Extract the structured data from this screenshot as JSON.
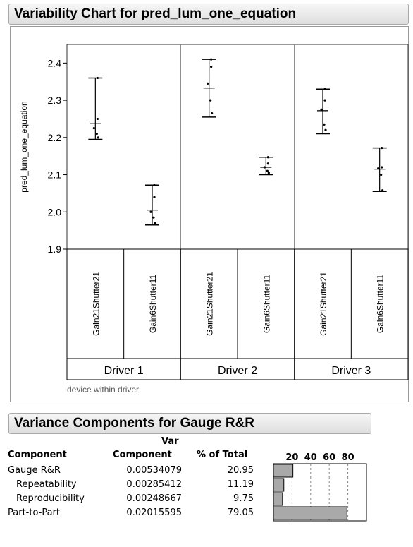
{
  "header_chart": "Variability Chart for pred_lum_one_equation",
  "header_variance": "Variance Components for Gauge R&R",
  "chart_data": {
    "type": "variability",
    "ylabel": "pred_lum_one_equation",
    "ylim": [
      1.9,
      2.45
    ],
    "yticks": [
      "2.4",
      "2.3",
      "2.2",
      "2.1",
      "2.0",
      "1.9"
    ],
    "groups": [
      "Driver 1",
      "Driver 2",
      "Driver 3"
    ],
    "devices": [
      "Gain21Shutter21",
      "Gain6Shutter11"
    ],
    "footer_label": "device within driver",
    "cells": [
      {
        "group": "Driver 1",
        "device": "Gain21Shutter21",
        "min": 2.195,
        "max": 2.36,
        "mean": 2.237,
        "points": [
          2.36,
          2.25,
          2.225,
          2.21,
          2.2
        ]
      },
      {
        "group": "Driver 1",
        "device": "Gain6Shutter11",
        "min": 1.965,
        "max": 2.072,
        "mean": 2.005,
        "points": [
          2.072,
          2.04,
          2.0,
          1.985,
          1.97
        ]
      },
      {
        "group": "Driver 2",
        "device": "Gain21Shutter21",
        "min": 2.255,
        "max": 2.41,
        "mean": 2.333,
        "points": [
          2.41,
          2.39,
          2.345,
          2.3,
          2.265
        ]
      },
      {
        "group": "Driver 2",
        "device": "Gain6Shutter11",
        "min": 2.1,
        "max": 2.147,
        "mean": 2.12,
        "points": [
          2.147,
          2.13,
          2.12,
          2.11,
          2.105
        ]
      },
      {
        "group": "Driver 3",
        "device": "Gain21Shutter21",
        "min": 2.21,
        "max": 2.33,
        "mean": 2.272,
        "points": [
          2.33,
          2.3,
          2.275,
          2.235,
          2.22
        ]
      },
      {
        "group": "Driver 3",
        "device": "Gain6Shutter11",
        "min": 2.055,
        "max": 2.172,
        "mean": 2.115,
        "points": [
          2.172,
          2.12,
          2.117,
          2.1,
          2.058
        ]
      }
    ],
    "variance_table": {
      "columns": [
        "Component",
        "Var Component",
        "% of Total"
      ],
      "header_top": "Var",
      "header_bottom": [
        "Component",
        "Component",
        "% of Total"
      ],
      "rows": [
        {
          "component": "Gauge R&R",
          "var": "0.00534079",
          "pct": "20.95",
          "pct_value": 20.95
        },
        {
          "component": "Repeatability",
          "var": "0.00285412",
          "pct": "11.19",
          "pct_value": 11.19
        },
        {
          "component": "Reproducibility",
          "var": "0.00248667",
          "pct": "9.75",
          "pct_value": 9.75
        },
        {
          "component": "Part-to-Part",
          "var": "0.02015595",
          "pct": "79.05",
          "pct_value": 79.05
        }
      ],
      "bar_axis_ticks": [
        "20",
        "40",
        "60",
        "80"
      ]
    }
  }
}
